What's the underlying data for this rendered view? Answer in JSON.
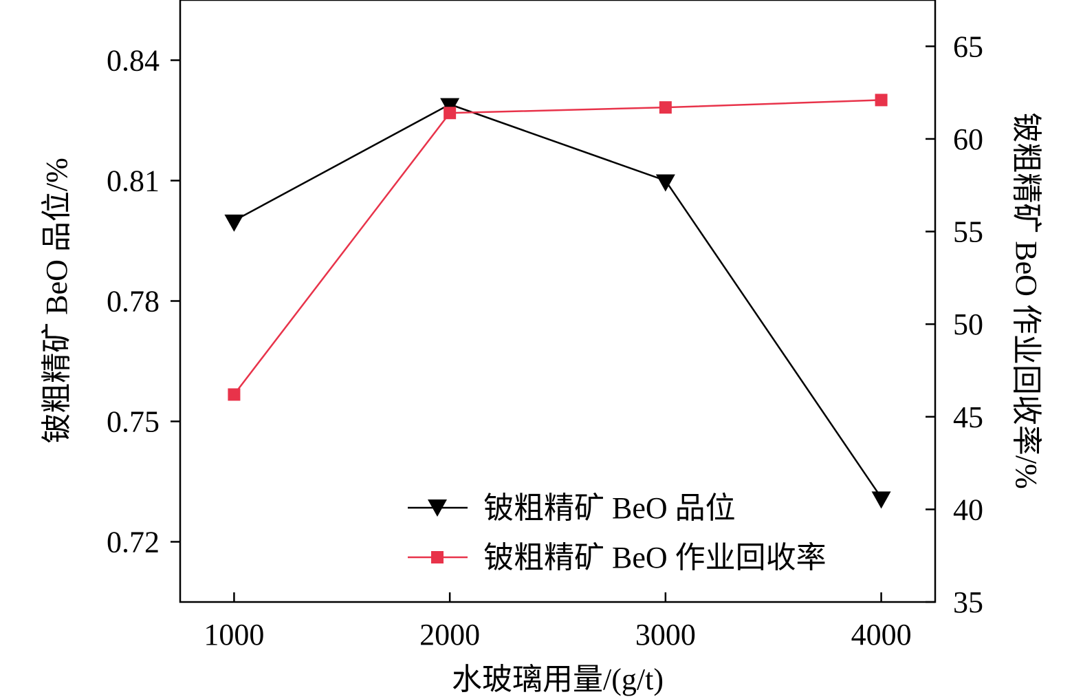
{
  "chart_data": {
    "type": "line",
    "x": [
      1000,
      2000,
      3000,
      4000
    ],
    "xlabel": "水玻璃用量/(g/t)",
    "xlim": [
      750,
      4250
    ],
    "xticks": [
      "1000",
      "2000",
      "3000",
      "4000"
    ],
    "ylabel_left": "铍粗精矿 BeO 品位/%",
    "ylim_left": [
      0.705,
      0.855
    ],
    "yticks_left": [
      "0.72",
      "0.75",
      "0.78",
      "0.81",
      "0.84"
    ],
    "ylabel_right": "铍粗精矿 BeO 作业回收率/%",
    "ylim_right": [
      35,
      67.5
    ],
    "yticks_right": [
      "35",
      "40",
      "45",
      "50",
      "55",
      "60",
      "65"
    ],
    "legend_position": "bottom-right",
    "grid": false,
    "series": [
      {
        "name": "铍粗精矿 BeO 品位",
        "axis": "left",
        "values": [
          0.8,
          0.829,
          0.81,
          0.731
        ],
        "color": "#000000",
        "marker": "triangle-down"
      },
      {
        "name": "铍粗精矿 BeO 作业回收率",
        "axis": "right",
        "values": [
          46.2,
          61.4,
          61.7,
          62.1
        ],
        "color": "#e8334a",
        "marker": "square"
      }
    ]
  }
}
